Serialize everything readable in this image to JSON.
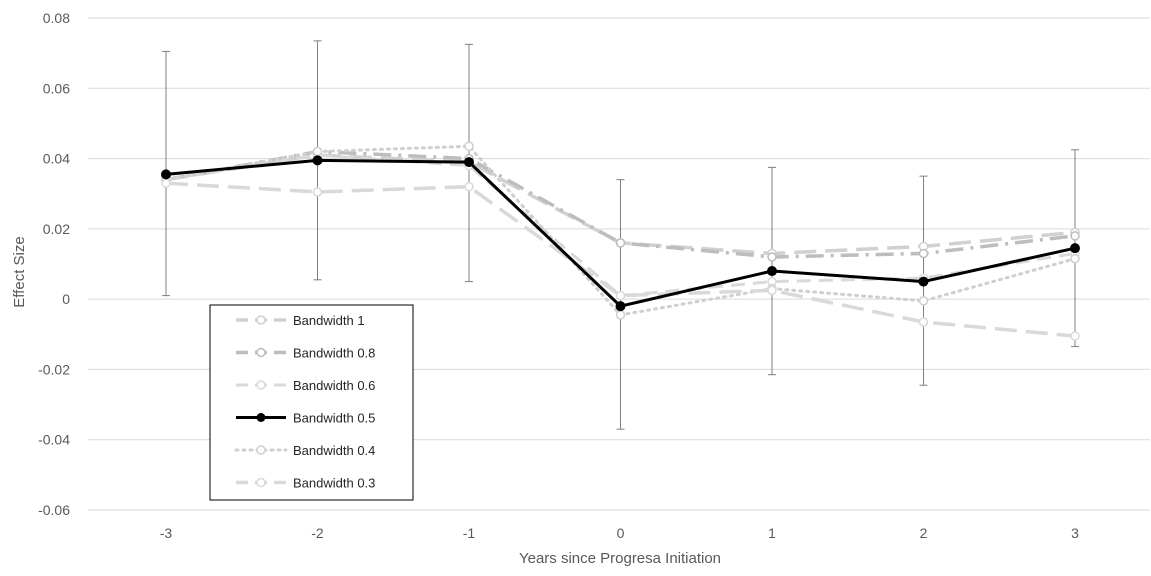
{
  "chart_data": {
    "type": "line",
    "title": "",
    "xlabel": "Years since Progresa Initiation",
    "ylabel": "Effect Size",
    "x": [
      -3,
      -2,
      -1,
      0,
      1,
      2,
      3
    ],
    "x_tick_labels": [
      "-3",
      "-2",
      "-1",
      "0",
      "1",
      "2",
      "3"
    ],
    "ylim": [
      -0.06,
      0.08
    ],
    "y_ticks": [
      -0.06,
      -0.04,
      -0.02,
      0,
      0.02,
      0.04,
      0.06,
      0.08
    ],
    "y_tick_labels": [
      "-0.06",
      "-0.04",
      "-0.02",
      "0",
      "0.02",
      "0.04",
      "0.06",
      "0.08"
    ],
    "grid": true,
    "legend_position": "lower-left inside",
    "series": [
      {
        "name": "Bandwidth 1",
        "values": [
          0.034,
          0.041,
          0.039,
          0.016,
          0.013,
          0.015,
          0.019
        ],
        "color": "#d0d0d0",
        "dash": "long-dash",
        "width": 3.5
      },
      {
        "name": "Bandwidth 0.8",
        "values": [
          0.034,
          0.042,
          0.04,
          0.016,
          0.012,
          0.013,
          0.018
        ],
        "color": "#bdbdbd",
        "dash": "dash-dot",
        "width": 3.5
      },
      {
        "name": "Bandwidth 0.6",
        "values": [
          0.034,
          0.041,
          0.038,
          0.001,
          0.005,
          0.006,
          0.013
        ],
        "color": "#d9d9d9",
        "dash": "dash",
        "width": 3
      },
      {
        "name": "Bandwidth 0.5",
        "values": [
          0.0355,
          0.0395,
          0.039,
          -0.002,
          0.008,
          0.005,
          0.0145
        ],
        "color": "#000000",
        "dash": "solid",
        "width": 3
      },
      {
        "name": "Bandwidth 0.4",
        "values": [
          0.034,
          0.042,
          0.0435,
          -0.0045,
          0.003,
          -0.0005,
          0.0115
        ],
        "color": "#cfcfcf",
        "dash": "dot",
        "width": 3
      },
      {
        "name": "Bandwidth 0.3",
        "values": [
          0.033,
          0.0305,
          0.032,
          0.001,
          0.0025,
          -0.0065,
          -0.0105
        ],
        "color": "#d9d9d9",
        "dash": "long-dash",
        "width": 3.5
      }
    ],
    "error_bars": {
      "series": "Bandwidth 0.5",
      "lower": [
        0.001,
        0.0055,
        0.005,
        -0.037,
        -0.0215,
        -0.0245,
        -0.0135
      ],
      "upper": [
        0.0705,
        0.0735,
        0.0725,
        0.034,
        0.0375,
        0.035,
        0.0425
      ],
      "color": "#7f7f7f"
    }
  }
}
